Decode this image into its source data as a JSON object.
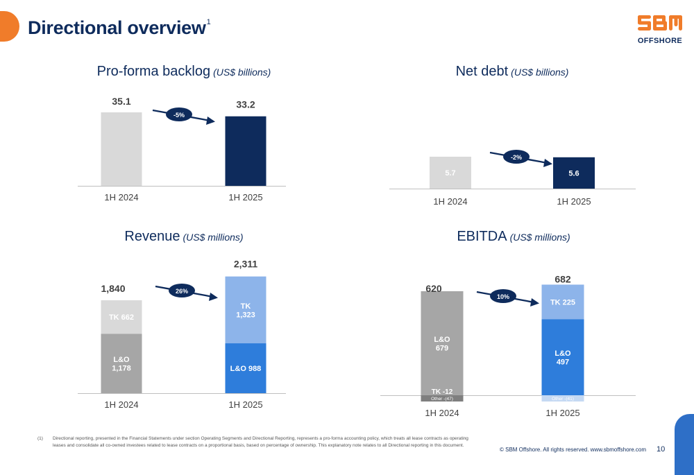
{
  "title": "Directional overview",
  "title_footnote_mark": "1",
  "logo": {
    "word": "OFFSHORE",
    "mark_letters": "SBM",
    "mark_color": "#f07c2a",
    "word_color": "#0e2b5c"
  },
  "colors": {
    "accent_orange": "#f07c2a",
    "navy": "#0e2b5c",
    "light_grey": "#d9d9d9",
    "mid_grey": "#a6a6a6",
    "dark_grey": "#7f7f7f",
    "light_blue": "#8db4ea",
    "bright_blue": "#2e7ddb",
    "pale_blue": "#c5d9f3",
    "page_tab_blue": "#2e6fc7"
  },
  "chart_data": [
    {
      "id": "backlog",
      "type": "bar",
      "title": "Pro-forma backlog",
      "unit": "(US$ billions)",
      "categories": [
        "1H 2024",
        "1H 2025"
      ],
      "values": [
        35.1,
        33.2
      ],
      "value_labels": [
        "35.1",
        "33.2"
      ],
      "bar_colors": [
        "#d9d9d9",
        "#0e2b5c"
      ],
      "change_label": "-5%"
    },
    {
      "id": "netdebt",
      "type": "bar",
      "title": "Net debt",
      "unit": "(US$ billions)",
      "categories": [
        "1H 2024",
        "1H 2025"
      ],
      "values": [
        5.7,
        5.6
      ],
      "value_labels": [
        "5.7",
        "5.6"
      ],
      "bar_colors": [
        "#d9d9d9",
        "#0e2b5c"
      ],
      "change_label": "-2%"
    },
    {
      "id": "revenue",
      "type": "bar",
      "stacked": true,
      "title": "Revenue",
      "unit": "(US$ millions)",
      "categories": [
        "1H 2024",
        "1H 2025"
      ],
      "totals": [
        1840,
        2311
      ],
      "total_labels": [
        "1,840",
        "2,311"
      ],
      "stacks": [
        [
          {
            "label": "L&O\n1,178",
            "value": 1178,
            "color": "#a6a6a6"
          },
          {
            "label": "TK  662",
            "value": 662,
            "color": "#d9d9d9"
          }
        ],
        [
          {
            "label": "L&O  988",
            "value": 988,
            "color": "#2e7ddb"
          },
          {
            "label": "TK\n1,323",
            "value": 1323,
            "color": "#8db4ea"
          }
        ]
      ],
      "change_label": "26%"
    },
    {
      "id": "ebitda",
      "type": "bar",
      "stacked": true,
      "title": "EBITDA",
      "unit": "(US$ millions)",
      "categories": [
        "1H 2024",
        "1H 2025"
      ],
      "totals": [
        620,
        682
      ],
      "total_labels": [
        "620",
        "682"
      ],
      "stacks": [
        [
          {
            "label": "L&O\n679",
            "value": 679,
            "color": "#a6a6a6"
          },
          {
            "label": "TK -12",
            "value": -12,
            "color": "#a6a6a6"
          },
          {
            "label": "Other -(47)",
            "value": -47,
            "color": "#7f7f7f"
          }
        ],
        [
          {
            "label": "L&O\n497",
            "value": 497,
            "color": "#2e7ddb"
          },
          {
            "label": "TK 225",
            "value": 225,
            "color": "#8db4ea"
          },
          {
            "label": "Other -(41)",
            "value": -41,
            "color": "#c5d9f3"
          }
        ]
      ],
      "change_label": "10%"
    }
  ],
  "footnote": {
    "mark": "(1)",
    "text": "Directional reporting, presented in the Financial Statements under section Operating Segments and Directional Reporting, represents a pro-forma accounting policy, which treats all lease contracts as operating leases and consolidate all co-owned investees related to lease contracts on a proportional basis, based on percentage of ownership. This explanatory note relates to all Directional reporting in this document."
  },
  "copyright": "© SBM Offshore. All rights reserved. www.sbmoffshore.com",
  "page_number": "10"
}
